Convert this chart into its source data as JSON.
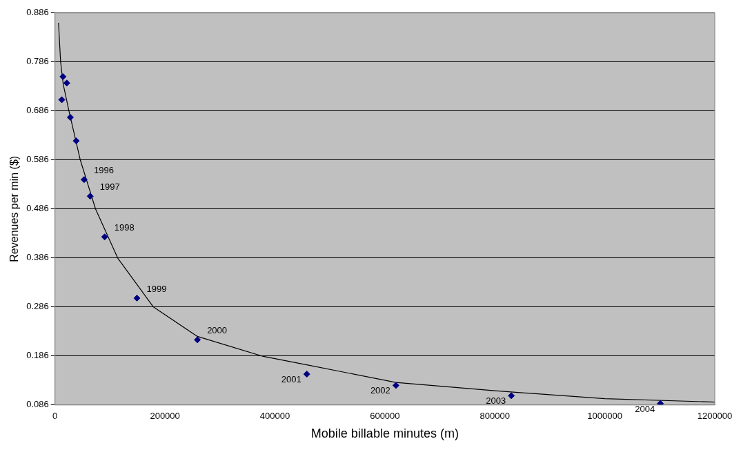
{
  "chart_data": {
    "type": "scatter",
    "xlabel": "Mobile billable minutes (m)",
    "ylabel": "Revenues per min ($)",
    "series": [
      {
        "color": "#000080",
        "marker": "diamond",
        "x": [
          12300,
          14400,
          21400,
          27900,
          38500,
          53000,
          64000,
          90300,
          149000,
          259000,
          458000,
          620000,
          830000,
          1101000
        ],
        "values": [
          0.709,
          0.756,
          0.743,
          0.673,
          0.625,
          0.546,
          0.512,
          0.429,
          0.304,
          0.219,
          0.149,
          0.126,
          0.105,
          0.089
        ]
      },
      {
        "type": "line",
        "color": "#000000",
        "marker": "none",
        "x": [
          6400,
          10200,
          15000,
          25400,
          46000,
          73700,
          114000,
          179000,
          259000,
          376000,
          458000,
          620000,
          800000,
          1000000,
          1200000
        ],
        "values": [
          0.866,
          0.786,
          0.74,
          0.686,
          0.586,
          0.486,
          0.386,
          0.286,
          0.226,
          0.186,
          0.168,
          0.132,
          0.115,
          0.099,
          0.092
        ]
      }
    ],
    "annotations": [
      {
        "text": "1996",
        "x": 53000,
        "y": 0.546
      },
      {
        "text": "1997",
        "x": 64000,
        "y": 0.512
      },
      {
        "text": "1998",
        "x": 90300,
        "y": 0.429
      },
      {
        "text": "1999",
        "x": 149000,
        "y": 0.304
      },
      {
        "text": "2000",
        "x": 259000,
        "y": 0.219
      },
      {
        "text": "2001",
        "x": 458000,
        "y": 0.149
      },
      {
        "text": "2002",
        "x": 620000,
        "y": 0.126
      },
      {
        "text": "2003",
        "x": 830000,
        "y": 0.105
      },
      {
        "text": "2004",
        "x": 1101000,
        "y": 0.089
      }
    ],
    "xlim": [
      0,
      1200000
    ],
    "xticks": [
      0,
      200000,
      400000,
      600000,
      800000,
      1000000,
      1200000
    ],
    "ylim": [
      0.086,
      0.886
    ],
    "yticks": [
      0.086,
      0.186,
      0.286,
      0.386,
      0.486,
      0.586,
      0.686,
      0.786,
      0.886
    ],
    "grid": "y",
    "legend": false
  }
}
